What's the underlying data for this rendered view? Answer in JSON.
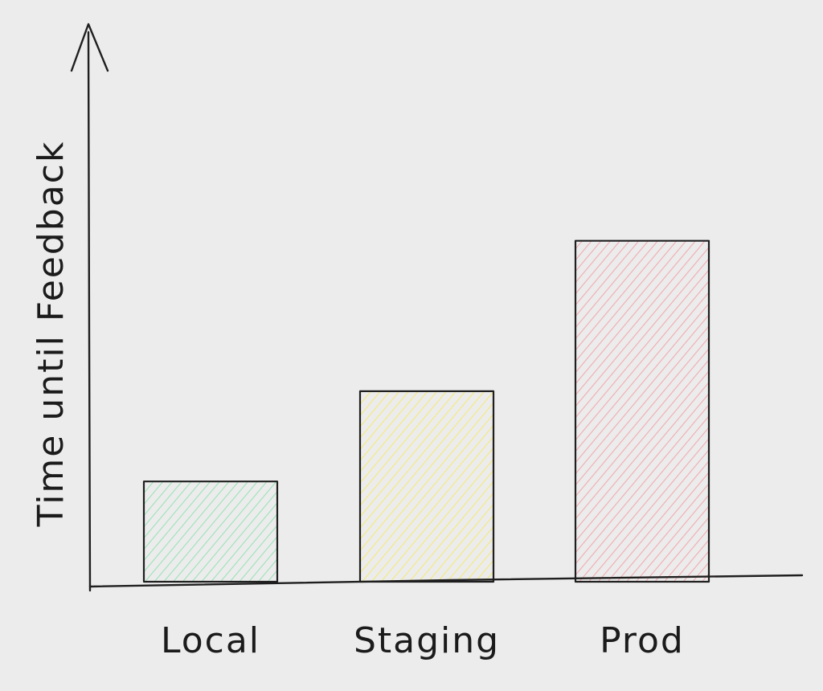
{
  "chart_data": {
    "type": "bar",
    "title": "",
    "xlabel": "",
    "ylabel": "Time until Feedback",
    "categories": [
      "Local",
      "Staging",
      "Prod"
    ],
    "values": [
      1.0,
      1.9,
      3.4
    ],
    "ylim": [
      0,
      5.0
    ],
    "grid": false,
    "legend": "none",
    "bar_colors": [
      "#9be3b8",
      "#f4ea7a",
      "#f2aab0"
    ],
    "y_axis_arrow": true,
    "hatched_bars": true
  }
}
